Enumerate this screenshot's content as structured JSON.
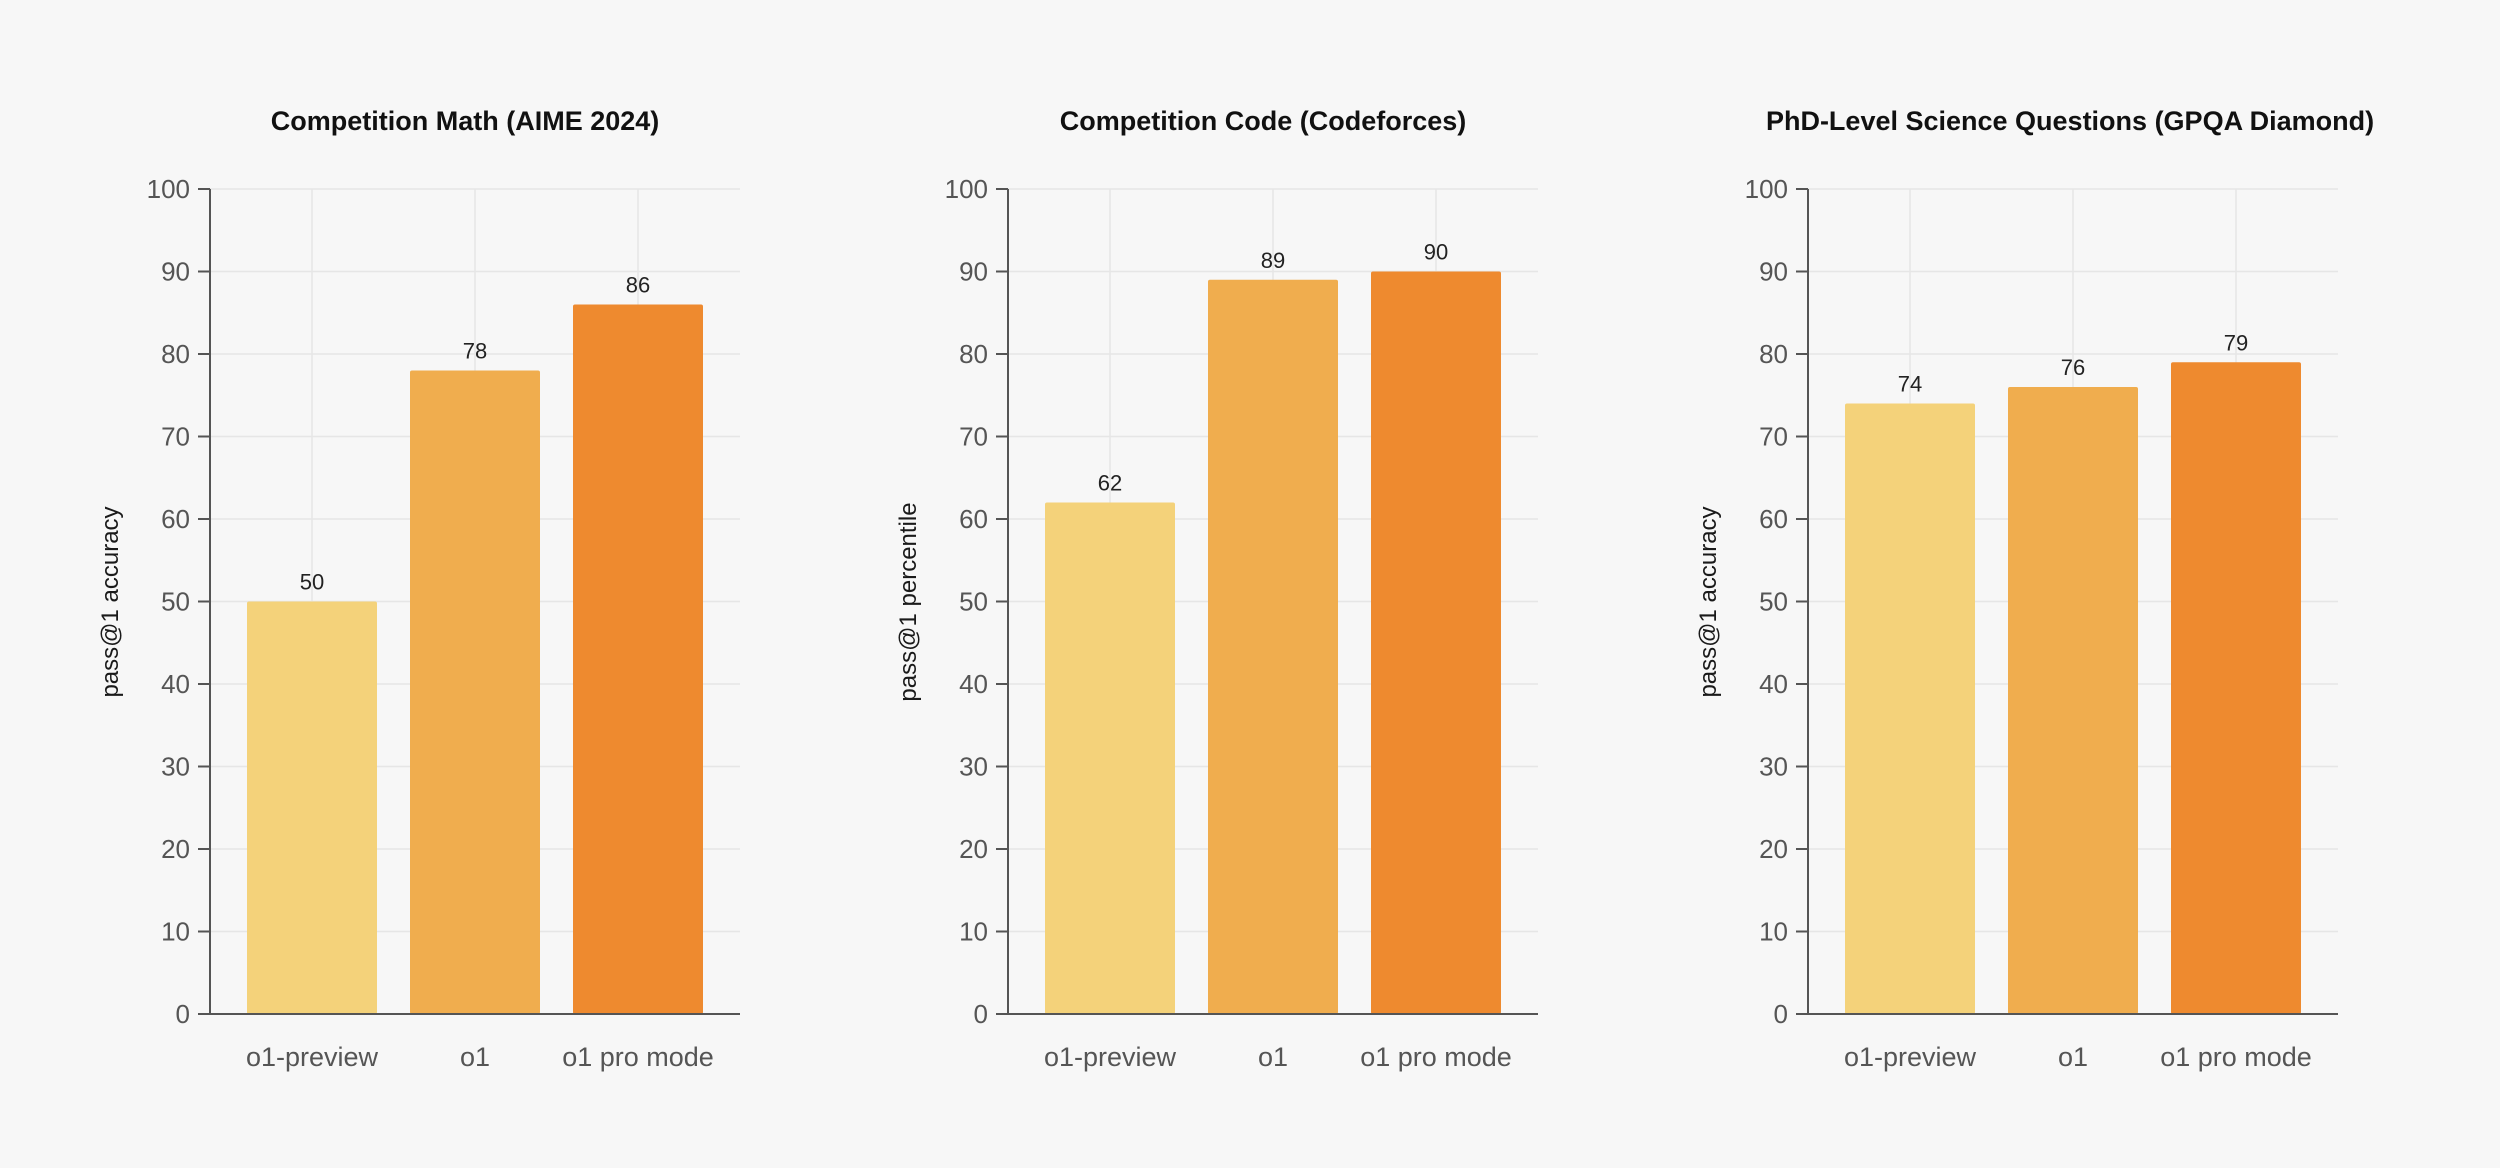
{
  "chart_data": [
    {
      "type": "bar",
      "title": "Competition Math (AIME 2024)",
      "ylabel": "pass@1 accuracy",
      "xlabel": "",
      "categories": [
        "o1-preview",
        "o1",
        "o1 pro mode"
      ],
      "values": [
        50,
        78,
        86
      ],
      "ylim": [
        0,
        100
      ],
      "yticks": [
        0,
        10,
        20,
        30,
        40,
        50,
        60,
        70,
        80,
        90,
        100
      ],
      "grid": true,
      "bar_colors": [
        "#f4d27a",
        "#f0ad4e",
        "#ee8a2f"
      ]
    },
    {
      "type": "bar",
      "title": "Competition Code (Codeforces)",
      "ylabel": "pass@1 percentile",
      "xlabel": "",
      "categories": [
        "o1-preview",
        "o1",
        "o1 pro mode"
      ],
      "values": [
        62,
        89,
        90
      ],
      "ylim": [
        0,
        100
      ],
      "yticks": [
        0,
        10,
        20,
        30,
        40,
        50,
        60,
        70,
        80,
        90,
        100
      ],
      "grid": true,
      "bar_colors": [
        "#f4d27a",
        "#f0ad4e",
        "#ee8a2f"
      ]
    },
    {
      "type": "bar",
      "title": "PhD-Level Science Questions (GPQA Diamond)",
      "ylabel": "pass@1 accuracy",
      "xlabel": "",
      "categories": [
        "o1-preview",
        "o1",
        "o1 pro mode"
      ],
      "values": [
        74,
        76,
        79
      ],
      "ylim": [
        0,
        100
      ],
      "yticks": [
        0,
        10,
        20,
        30,
        40,
        50,
        60,
        70,
        80,
        90,
        100
      ],
      "grid": true,
      "bar_colors": [
        "#f4d27a",
        "#f0ad4e",
        "#ee8a2f"
      ]
    }
  ]
}
